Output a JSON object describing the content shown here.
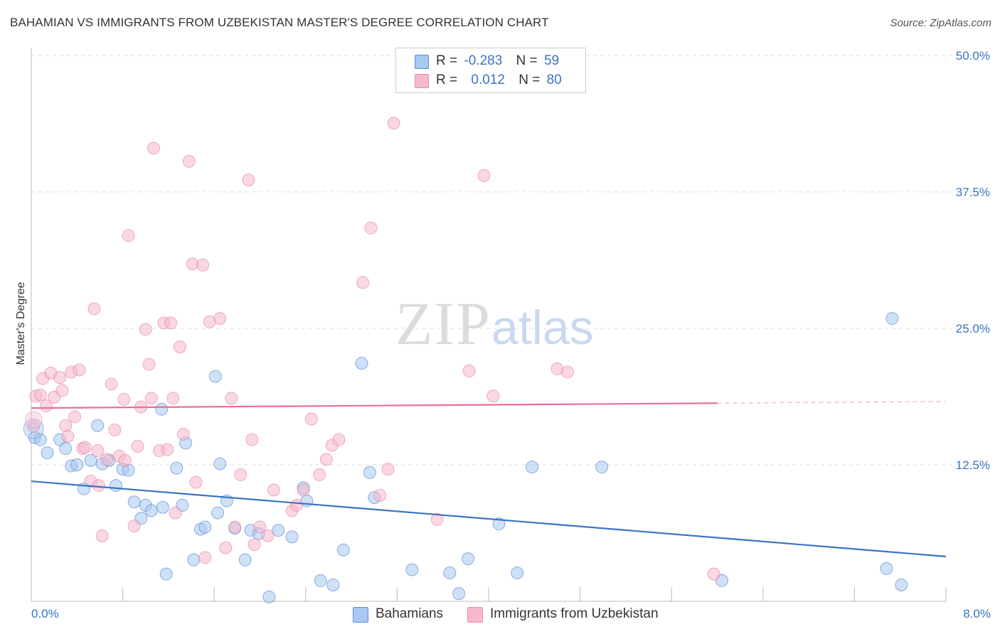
{
  "header": {
    "title": "BAHAMIAN VS IMMIGRANTS FROM UZBEKISTAN MASTER'S DEGREE CORRELATION CHART",
    "source": "Source: ZipAtlas.com"
  },
  "legend": {
    "rows": [
      {
        "r_label": "R =",
        "r_value": "-0.283",
        "n_label": "N =",
        "n_value": "59",
        "color": "#a8c8f0"
      },
      {
        "r_label": "R =",
        "r_value": "0.012",
        "n_label": "N =",
        "n_value": "80",
        "color": "#f5b8cc"
      }
    ]
  },
  "watermark": {
    "zip": "ZIP",
    "atlas": "atlas"
  },
  "chart_data": {
    "type": "scatter",
    "title": "BAHAMIAN VS IMMIGRANTS FROM UZBEKISTAN MASTER'S DEGREE CORRELATION CHART",
    "xlabel": "",
    "ylabel": "Master's Degree",
    "xlim": [
      0,
      8
    ],
    "ylim": [
      0,
      50
    ],
    "x_tick_labels": [
      "0.0%",
      "8.0%"
    ],
    "y_tick_values": [
      12.5,
      25.0,
      37.5,
      50.0
    ],
    "y_tick_labels": [
      "12.5%",
      "25.0%",
      "37.5%",
      "50.0%"
    ],
    "grid": true,
    "legend_position": "top-center",
    "series": [
      {
        "name": "Bahamians",
        "color": "#3a74c4",
        "fill": "#a8c8f0",
        "trend": {
          "x": [
            0,
            8
          ],
          "y": [
            11.0,
            4.1
          ],
          "dashed_after": null
        },
        "points": [
          [
            0.03,
            15.0
          ],
          [
            0.08,
            14.8
          ],
          [
            0.14,
            13.6
          ],
          [
            0.25,
            14.8
          ],
          [
            0.3,
            14.0
          ],
          [
            0.35,
            12.4
          ],
          [
            0.4,
            12.5
          ],
          [
            0.46,
            10.3
          ],
          [
            0.52,
            12.9
          ],
          [
            0.58,
            16.1
          ],
          [
            0.62,
            12.6
          ],
          [
            0.68,
            12.9
          ],
          [
            0.74,
            10.6
          ],
          [
            0.8,
            12.1
          ],
          [
            0.85,
            12.0
          ],
          [
            0.9,
            9.1
          ],
          [
            0.96,
            7.6
          ],
          [
            1.0,
            8.8
          ],
          [
            1.05,
            8.3
          ],
          [
            1.15,
            8.6
          ],
          [
            1.18,
            2.5
          ],
          [
            1.27,
            12.2
          ],
          [
            1.32,
            8.8
          ],
          [
            1.35,
            14.5
          ],
          [
            1.42,
            3.8
          ],
          [
            1.48,
            6.6
          ],
          [
            1.52,
            6.8
          ],
          [
            1.61,
            20.6
          ],
          [
            1.63,
            8.1
          ],
          [
            1.71,
            9.2
          ],
          [
            1.78,
            6.7
          ],
          [
            1.87,
            3.8
          ],
          [
            1.92,
            6.5
          ],
          [
            1.99,
            6.2
          ],
          [
            2.08,
            0.4
          ],
          [
            2.16,
            6.5
          ],
          [
            2.28,
            5.9
          ],
          [
            2.38,
            10.4
          ],
          [
            2.41,
            9.2
          ],
          [
            2.53,
            1.9
          ],
          [
            2.64,
            1.5
          ],
          [
            2.73,
            4.7
          ],
          [
            2.89,
            21.8
          ],
          [
            2.96,
            11.8
          ],
          [
            3.0,
            9.5
          ],
          [
            1.14,
            17.6
          ],
          [
            3.33,
            2.9
          ],
          [
            3.66,
            2.6
          ],
          [
            3.82,
            3.9
          ],
          [
            3.74,
            0.7
          ],
          [
            4.09,
            7.1
          ],
          [
            4.25,
            2.6
          ],
          [
            4.38,
            12.3
          ],
          [
            4.99,
            12.3
          ],
          [
            6.04,
            1.9
          ],
          [
            7.53,
            25.9
          ],
          [
            7.48,
            3.0
          ],
          [
            7.61,
            1.5
          ],
          [
            1.65,
            12.6
          ]
        ]
      },
      {
        "name": "Immigrants from Uzbekistan",
        "color": "#e8709a",
        "fill": "#f5b8cc",
        "trend": {
          "x": [
            0,
            8
          ],
          "y": [
            17.7,
            18.3
          ],
          "solid_until": 6.0
        },
        "points": [
          [
            0.02,
            16.0
          ],
          [
            0.04,
            18.8
          ],
          [
            0.08,
            18.9
          ],
          [
            0.1,
            20.4
          ],
          [
            0.13,
            17.9
          ],
          [
            0.17,
            20.9
          ],
          [
            0.2,
            18.7
          ],
          [
            0.27,
            19.3
          ],
          [
            0.3,
            16.1
          ],
          [
            0.32,
            15.1
          ],
          [
            0.35,
            21.0
          ],
          [
            0.38,
            16.9
          ],
          [
            0.42,
            21.2
          ],
          [
            0.45,
            14.0
          ],
          [
            0.47,
            14.1
          ],
          [
            0.52,
            11.0
          ],
          [
            0.55,
            26.8
          ],
          [
            0.59,
            10.6
          ],
          [
            0.62,
            6.0
          ],
          [
            0.66,
            13.0
          ],
          [
            0.7,
            19.9
          ],
          [
            0.73,
            15.7
          ],
          [
            0.77,
            13.3
          ],
          [
            0.81,
            18.5
          ],
          [
            0.82,
            12.9
          ],
          [
            0.85,
            33.5
          ],
          [
            0.9,
            6.9
          ],
          [
            0.93,
            14.2
          ],
          [
            0.96,
            17.8
          ],
          [
            1.0,
            24.9
          ],
          [
            1.03,
            21.7
          ],
          [
            1.05,
            18.6
          ],
          [
            1.07,
            41.5
          ],
          [
            1.12,
            13.8
          ],
          [
            1.16,
            25.5
          ],
          [
            1.19,
            13.9
          ],
          [
            1.22,
            25.5
          ],
          [
            1.24,
            18.6
          ],
          [
            1.26,
            8.1
          ],
          [
            1.3,
            23.3
          ],
          [
            1.33,
            15.3
          ],
          [
            1.38,
            40.3
          ],
          [
            1.41,
            30.9
          ],
          [
            1.44,
            10.9
          ],
          [
            1.5,
            30.8
          ],
          [
            1.52,
            4.0
          ],
          [
            1.56,
            25.6
          ],
          [
            1.65,
            25.9
          ],
          [
            1.7,
            4.9
          ],
          [
            1.75,
            18.6
          ],
          [
            1.78,
            6.8
          ],
          [
            1.83,
            11.6
          ],
          [
            1.9,
            38.6
          ],
          [
            1.93,
            14.8
          ],
          [
            1.95,
            5.2
          ],
          [
            2.0,
            6.8
          ],
          [
            2.07,
            6.0
          ],
          [
            2.12,
            10.2
          ],
          [
            2.28,
            8.3
          ],
          [
            2.32,
            8.8
          ],
          [
            2.38,
            10.2
          ],
          [
            2.45,
            16.7
          ],
          [
            2.52,
            11.6
          ],
          [
            2.58,
            13.0
          ],
          [
            2.63,
            14.3
          ],
          [
            2.69,
            14.8
          ],
          [
            2.9,
            29.2
          ],
          [
            2.97,
            34.2
          ],
          [
            3.05,
            9.7
          ],
          [
            3.12,
            12.1
          ],
          [
            3.17,
            43.8
          ],
          [
            3.55,
            7.5
          ],
          [
            3.83,
            21.1
          ],
          [
            3.96,
            39.0
          ],
          [
            4.04,
            18.8
          ],
          [
            4.6,
            21.3
          ],
          [
            4.69,
            21.0
          ],
          [
            5.97,
            2.5
          ],
          [
            0.25,
            20.5
          ],
          [
            0.58,
            13.8
          ]
        ]
      }
    ]
  },
  "bottom_legend": {
    "items": [
      {
        "label": "Bahamians",
        "color": "#a8c8f0"
      },
      {
        "label": "Immigrants from Uzbekistan",
        "color": "#f5b8cc"
      }
    ]
  }
}
